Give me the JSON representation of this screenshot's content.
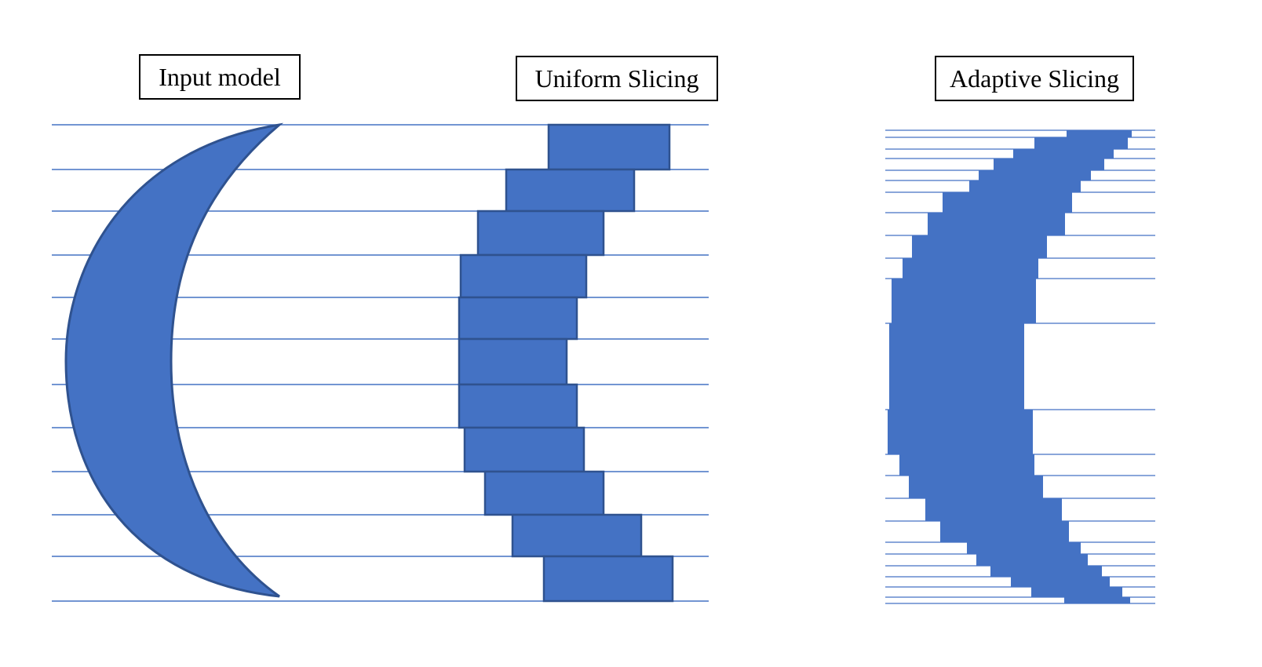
{
  "labels": {
    "input_model": "Input model",
    "uniform_slicing": "Uniform Slicing",
    "adaptive_slicing": "Adaptive Slicing"
  },
  "colors": {
    "fill": "#4472C4",
    "stroke": "#2F528F",
    "line": "#4472C4"
  }
}
